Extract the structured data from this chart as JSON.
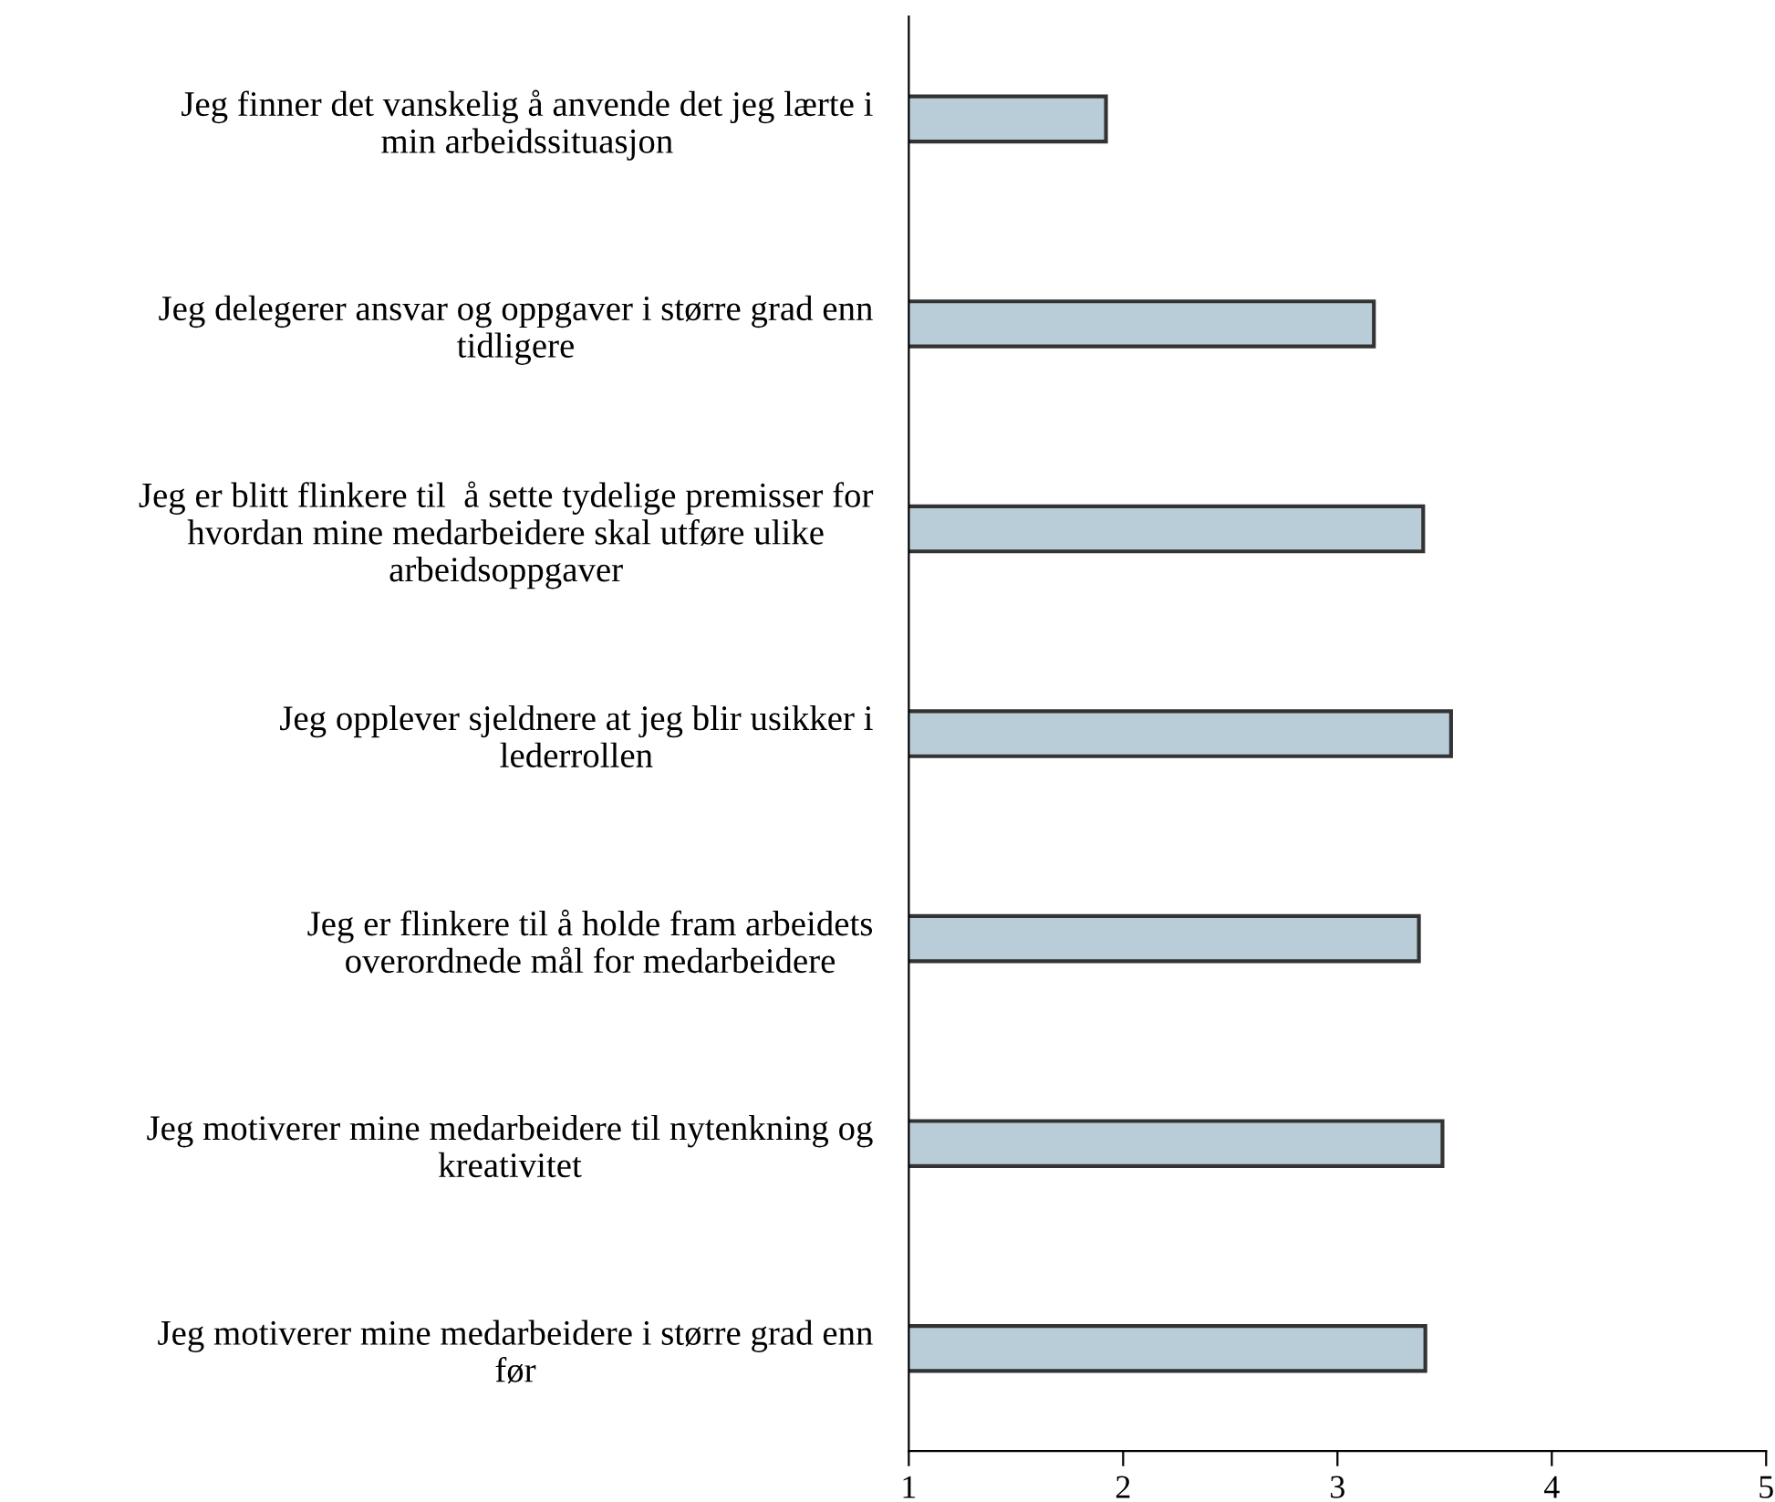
{
  "chart_data": {
    "type": "bar",
    "orientation": "horizontal",
    "categories": [
      "Jeg finner det vanskelig å anvende det jeg lærte i\nmin arbeidssituasjon",
      "Jeg delegerer ansvar og oppgaver i større grad enn\ntidligere",
      "Jeg er blitt flinkere til  å sette tydelige premisser for\nhvordan mine medarbeidere skal utføre ulike\narbeidsoppgaver",
      "Jeg opplever sjeldnere at jeg blir usikker i\nlederrollen",
      "Jeg er flinkere til å holde fram arbeidets\noverordnede mål for medarbeidere",
      "Jeg motiverer mine medarbeidere til nytenkning og\nkreativitet",
      "Jeg motiverer mine medarbeidere i større grad enn\nfør"
    ],
    "values": [
      1.92,
      3.17,
      3.4,
      3.53,
      3.38,
      3.49,
      3.41
    ],
    "color": "#b9cdd8",
    "xlim": [
      1,
      5
    ],
    "xticks": [
      1,
      2,
      3,
      4,
      5
    ],
    "grid": false,
    "legend": false
  }
}
